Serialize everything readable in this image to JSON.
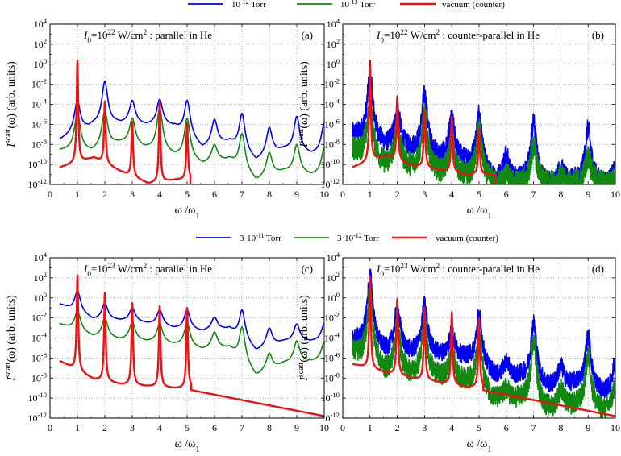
{
  "legends": [
    {
      "entries": [
        {
          "label_pre": "10",
          "label_sup": "-12",
          "label_post": " Torr",
          "color": "#0000ee"
        },
        {
          "label_pre": "10",
          "label_sup": "-13",
          "label_post": " Torr",
          "color": "#118811"
        },
        {
          "label_pre": "vacuum (counter)",
          "label_sup": "",
          "label_post": "",
          "color": "#ee1111"
        }
      ]
    },
    {
      "entries": [
        {
          "label_pre": "3·10",
          "label_sup": "-11",
          "label_post": " Torr",
          "color": "#0000ee"
        },
        {
          "label_pre": "3·10",
          "label_sup": "-12",
          "label_post": " Torr",
          "color": "#118811"
        },
        {
          "label_pre": "vacuum (counter)",
          "label_sup": "",
          "label_post": "",
          "color": "#ee1111"
        }
      ]
    }
  ],
  "chart_data": [
    {
      "type": "line",
      "panel": "(a)",
      "log_y": true,
      "annotation": {
        "i0_exp": "22",
        "geometry": "parallel in He"
      },
      "xlabel": "ω /ω",
      "xlabel_sub": "1",
      "ylabel_pre": "I",
      "ylabel_sup": "scatt",
      "ylabel_post": "(ω) (arb. units)",
      "xlim": [
        0,
        10
      ],
      "xticks": [
        0,
        1,
        2,
        3,
        4,
        5,
        6,
        7,
        8,
        9,
        10
      ],
      "ylim_exp": [
        -12,
        4
      ],
      "ytick_exps": [
        -12,
        -10,
        -8,
        -6,
        -4,
        -2,
        0,
        2,
        4
      ],
      "series": [
        {
          "name": "10^-12 Torr",
          "color": "#0000ee",
          "peaks": [
            [
              1,
              -3.6
            ],
            [
              2,
              -1.7
            ],
            [
              3,
              -3.6
            ],
            [
              4,
              -3.5
            ],
            [
              5,
              -3.6
            ],
            [
              6,
              -5.5
            ],
            [
              7,
              -4.9
            ],
            [
              8,
              -6.3
            ],
            [
              9,
              -5.2
            ],
            [
              10,
              -5.9
            ]
          ],
          "valleys": [
            [
              0.35,
              -7.6
            ],
            [
              1.55,
              -6.0
            ],
            [
              2.55,
              -5.8
            ],
            [
              3.55,
              -6.0
            ],
            [
              4.55,
              -6.1
            ],
            [
              5.55,
              -8.3
            ],
            [
              6.55,
              -7.6
            ],
            [
              7.5,
              -9.6
            ],
            [
              8.5,
              -8.4
            ],
            [
              9.5,
              -8.9
            ]
          ],
          "x_end": 10
        },
        {
          "name": "10^-13 Torr",
          "color": "#118811",
          "peaks": [
            [
              1,
              -4.8
            ],
            [
              2,
              -4.7
            ],
            [
              3,
              -5.4
            ],
            [
              4,
              -4.4
            ],
            [
              5,
              -5.4
            ],
            [
              6,
              -8.0
            ],
            [
              7,
              -6.9
            ],
            [
              8,
              -8.8
            ],
            [
              9,
              -8.0
            ],
            [
              10,
              -8.4
            ]
          ],
          "valleys": [
            [
              0.35,
              -8.6
            ],
            [
              1.55,
              -8.6
            ],
            [
              2.55,
              -7.7
            ],
            [
              3.55,
              -8.3
            ],
            [
              4.55,
              -9.0
            ],
            [
              5.55,
              -9.9
            ],
            [
              6.55,
              -9.4
            ],
            [
              7.5,
              -11.6
            ],
            [
              8.5,
              -10.6
            ],
            [
              9.5,
              -11.0
            ]
          ],
          "x_end": 10
        },
        {
          "name": "vacuum (counter)",
          "color": "#ee1111",
          "peaks": [
            [
              1,
              0.4
            ],
            [
              2,
              -3.7
            ],
            [
              3,
              -5.7
            ],
            [
              4,
              -3.8
            ],
            [
              5,
              -5.9
            ]
          ],
          "valleys": [
            [
              0.35,
              -10.3
            ],
            [
              1.6,
              -9.3
            ],
            [
              2.6,
              -10.7
            ],
            [
              3.6,
              -11.9
            ],
            [
              4.6,
              -11.5
            ]
          ],
          "x_end": 5.12
        }
      ]
    },
    {
      "type": "line",
      "panel": "(b)",
      "log_y": true,
      "annotation": {
        "i0_exp": "22",
        "geometry": "counter-parallel in He"
      },
      "xlabel": "ω /ω",
      "xlabel_sub": "1",
      "ylabel_pre": "I",
      "ylabel_sup": "scatt",
      "ylabel_post": "(ω) (arb. units)",
      "xlim": [
        0,
        10
      ],
      "xticks": [
        0,
        1,
        2,
        3,
        4,
        5,
        6,
        7,
        8,
        9,
        10
      ],
      "ylim_exp": [
        -12,
        4
      ],
      "ytick_exps": [
        -12,
        -10,
        -8,
        -6,
        -4,
        -2,
        0,
        2,
        4
      ],
      "series": [
        {
          "name": "10^-12 Torr",
          "color": "#0000ee",
          "peaks": [
            [
              1,
              -1.0
            ],
            [
              2,
              -4.4
            ],
            [
              3,
              -3.0
            ],
            [
              4,
              -5.4
            ],
            [
              5,
              -4.8
            ],
            [
              6,
              -9.0
            ],
            [
              7,
              -5.8
            ],
            [
              8,
              -10.2
            ],
            [
              9,
              -6.4
            ],
            [
              10,
              -10.5
            ]
          ],
          "valleys": [
            [
              0.35,
              -7.0
            ],
            [
              1.55,
              -8.0
            ],
            [
              2.55,
              -8.4
            ],
            [
              3.55,
              -9.2
            ],
            [
              4.55,
              -9.6
            ],
            [
              5.55,
              -11.5
            ],
            [
              6.55,
              -11.4
            ],
            [
              7.5,
              -11.9
            ],
            [
              8.5,
              -11.6
            ],
            [
              9.5,
              -11.8
            ]
          ],
          "x_end": 10,
          "noise": 1.0
        },
        {
          "name": "10^-13 Torr",
          "color": "#118811",
          "peaks": [
            [
              1,
              -4.0
            ],
            [
              2,
              -6.2
            ],
            [
              3,
              -5.0
            ],
            [
              4,
              -7.5
            ],
            [
              5,
              -6.6
            ],
            [
              6,
              -11.0
            ],
            [
              7,
              -8.2
            ],
            [
              8,
              -11.2
            ],
            [
              9,
              -9.2
            ],
            [
              10,
              -11.5
            ]
          ],
          "valleys": [
            [
              0.35,
              -8.5
            ],
            [
              1.55,
              -10.0
            ],
            [
              2.55,
              -10.2
            ],
            [
              3.55,
              -10.8
            ],
            [
              4.55,
              -11.2
            ],
            [
              5.55,
              -11.9
            ],
            [
              6.55,
              -11.9
            ],
            [
              7.5,
              -11.9
            ],
            [
              8.5,
              -11.9
            ],
            [
              9.5,
              -11.9
            ]
          ],
          "x_end": 10,
          "noise": 1.2
        },
        {
          "name": "vacuum (counter)",
          "color": "#ee1111",
          "peaks": [
            [
              1,
              0.4
            ],
            [
              2,
              -3.2
            ],
            [
              3,
              -4.4
            ],
            [
              4,
              -5.2
            ],
            [
              5,
              -6.4
            ]
          ],
          "valleys": [
            [
              0.35,
              -10.3
            ],
            [
              1.55,
              -9.1
            ],
            [
              2.55,
              -10.1
            ],
            [
              3.55,
              -10.5
            ],
            [
              4.55,
              -11.0
            ]
          ],
          "x_end": 5.6
        }
      ]
    },
    {
      "type": "line",
      "panel": "(c)",
      "log_y": true,
      "annotation": {
        "i0_exp": "23",
        "geometry": "parallel in He"
      },
      "xlabel": "ω /ω",
      "xlabel_sub": "1",
      "ylabel_pre": "I",
      "ylabel_sup": "scatt",
      "ylabel_post": "(ω) (arb. units)",
      "xlim": [
        0,
        10
      ],
      "xticks": [
        0,
        1,
        2,
        3,
        4,
        5,
        6,
        7,
        8,
        9,
        10
      ],
      "ylim_exp": [
        -12,
        4
      ],
      "ytick_exps": [
        -12,
        -10,
        -8,
        -6,
        -4,
        -2,
        0,
        2,
        4
      ],
      "series": [
        {
          "name": "3·10^-11 Torr",
          "color": "#0000ee",
          "peaks": [
            [
              1,
              0.7
            ],
            [
              2,
              -0.5
            ],
            [
              3,
              -1.0
            ],
            [
              4,
              -1.2
            ],
            [
              5,
              -1.2
            ],
            [
              6,
              -1.9
            ],
            [
              7,
              -1.2
            ],
            [
              8,
              -3.0
            ],
            [
              9,
              -2.6
            ],
            [
              10,
              -2.6
            ]
          ],
          "valleys": [
            [
              0.35,
              -0.6
            ],
            [
              1.55,
              -2.1
            ],
            [
              2.55,
              -2.2
            ],
            [
              3.55,
              -2.5
            ],
            [
              4.55,
              -3.0
            ],
            [
              5.55,
              -3.3
            ],
            [
              6.55,
              -3.0
            ],
            [
              7.5,
              -5.3
            ],
            [
              8.5,
              -4.3
            ],
            [
              9.5,
              -4.3
            ]
          ],
          "x_end": 10
        },
        {
          "name": "3·10^-12 Torr",
          "color": "#118811",
          "peaks": [
            [
              1,
              -1.3
            ],
            [
              2,
              -2.0
            ],
            [
              3,
              -2.4
            ],
            [
              4,
              -2.6
            ],
            [
              5,
              -2.5
            ],
            [
              6,
              -3.4
            ],
            [
              7,
              -2.9
            ],
            [
              8,
              -5.5
            ],
            [
              9,
              -4.3
            ],
            [
              10,
              -4.4
            ]
          ],
          "valleys": [
            [
              0.35,
              -2.6
            ],
            [
              1.55,
              -3.8
            ],
            [
              2.55,
              -4.1
            ],
            [
              3.55,
              -4.3
            ],
            [
              4.55,
              -4.6
            ],
            [
              5.55,
              -5.1
            ],
            [
              6.55,
              -4.9
            ],
            [
              7.5,
              -7.8
            ],
            [
              8.5,
              -6.5
            ],
            [
              9.5,
              -6.3
            ]
          ],
          "x_end": 10
        },
        {
          "name": "vacuum (counter)",
          "color": "#ee1111",
          "peaks": [
            [
              1,
              2.3
            ],
            [
              2,
              0.5
            ],
            [
              3,
              -0.5
            ],
            [
              4,
              -0.8
            ],
            [
              5,
              -1.0
            ]
          ],
          "valleys": [
            [
              0.35,
              -6.3
            ],
            [
              1.6,
              -8.1
            ],
            [
              2.6,
              -8.6
            ],
            [
              3.6,
              -8.8
            ],
            [
              4.6,
              -9.0
            ]
          ],
          "x_end": 10,
          "tail_from": 5.15,
          "tail": [
            -9.2,
            -11.8
          ]
        }
      ]
    },
    {
      "type": "line",
      "panel": "(d)",
      "log_y": true,
      "annotation": {
        "i0_exp": "23",
        "geometry": "counter-parallel in He"
      },
      "xlabel": "ω /ω",
      "xlabel_sub": "1",
      "ylabel_pre": "I",
      "ylabel_sup": "scatt",
      "ylabel_post": "(ω) (arb. units)",
      "xlim": [
        0,
        10
      ],
      "xticks": [
        0,
        1,
        2,
        3,
        4,
        5,
        6,
        7,
        8,
        9,
        10
      ],
      "ylim_exp": [
        -12,
        4
      ],
      "ytick_exps": [
        -12,
        -10,
        -8,
        -6,
        -4,
        -2,
        0,
        2,
        4
      ],
      "series": [
        {
          "name": "3·10^-11 Torr",
          "color": "#0000ee",
          "peaks": [
            [
              1,
              2.2
            ],
            [
              2,
              -1.0
            ],
            [
              3,
              -0.7
            ],
            [
              4,
              -3.4
            ],
            [
              5,
              -1.7
            ],
            [
              6,
              -6.3
            ],
            [
              7,
              -2.5
            ],
            [
              8,
              -6.7
            ],
            [
              9,
              -3.8
            ],
            [
              10,
              -6.3
            ]
          ],
          "valleys": [
            [
              0.35,
              -4.2
            ],
            [
              1.55,
              -5.2
            ],
            [
              2.55,
              -5.4
            ],
            [
              3.55,
              -5.6
            ],
            [
              4.55,
              -5.9
            ],
            [
              5.55,
              -7.7
            ],
            [
              6.55,
              -7.8
            ],
            [
              7.5,
              -8.8
            ],
            [
              8.5,
              -8.5
            ],
            [
              9.5,
              -9.4
            ]
          ],
          "x_end": 10,
          "noise": 0.9
        },
        {
          "name": "3·10^-12 Torr",
          "color": "#118811",
          "peaks": [
            [
              1,
              0.6
            ],
            [
              2,
              -2.6
            ],
            [
              3,
              -2.5
            ],
            [
              4,
              -5.4
            ],
            [
              5,
              -3.8
            ],
            [
              6,
              -9.0
            ],
            [
              7,
              -4.2
            ],
            [
              8,
              -9.0
            ],
            [
              9,
              -5.8
            ],
            [
              10,
              -8.6
            ]
          ],
          "valleys": [
            [
              0.35,
              -5.4
            ],
            [
              1.55,
              -7.3
            ],
            [
              2.55,
              -7.6
            ],
            [
              3.55,
              -7.9
            ],
            [
              4.55,
              -8.3
            ],
            [
              5.55,
              -10.1
            ],
            [
              6.55,
              -10.1
            ],
            [
              7.5,
              -11.1
            ],
            [
              8.5,
              -10.7
            ],
            [
              9.5,
              -11.3
            ]
          ],
          "x_end": 10,
          "noise": 1.1
        },
        {
          "name": "vacuum (counter)",
          "color": "#ee1111",
          "peaks": [
            [
              1,
              2.2
            ],
            [
              2,
              -0.1
            ],
            [
              3,
              -0.9
            ],
            [
              4,
              -1.4
            ],
            [
              5,
              -2.0
            ]
          ],
          "valleys": [
            [
              0.35,
              -6.6
            ],
            [
              1.55,
              -7.4
            ],
            [
              2.55,
              -8.0
            ],
            [
              3.55,
              -8.4
            ],
            [
              4.55,
              -8.9
            ]
          ],
          "x_end": 10,
          "tail_from": 5.15,
          "tail": [
            -9.2,
            -11.8
          ]
        }
      ]
    }
  ]
}
